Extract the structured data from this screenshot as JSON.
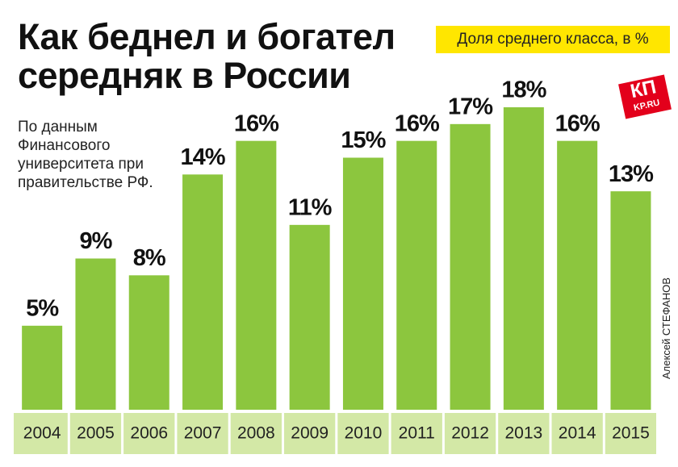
{
  "chart_data": {
    "type": "bar",
    "title": "Как беднел и богател середняк в России",
    "legend_label": "Доля среднего класса, в %",
    "source_note": "По данным Финансового университета при правительстве РФ.",
    "logo": {
      "top": "КП",
      "bottom": "KP.RU"
    },
    "credit": "Алексей СТЕФАНОВ",
    "categories": [
      "2004",
      "2005",
      "2006",
      "2007",
      "2008",
      "2009",
      "2010",
      "2011",
      "2012",
      "2013",
      "2014",
      "2015"
    ],
    "values": [
      5,
      9,
      8,
      14,
      16,
      11,
      15,
      16,
      17,
      18,
      16,
      13
    ],
    "value_labels": [
      "5%",
      "9%",
      "8%",
      "14%",
      "16%",
      "11%",
      "15%",
      "16%",
      "17%",
      "18%",
      "16%",
      "13%"
    ],
    "color": "#8cc63e",
    "ylim": [
      0,
      18
    ]
  }
}
